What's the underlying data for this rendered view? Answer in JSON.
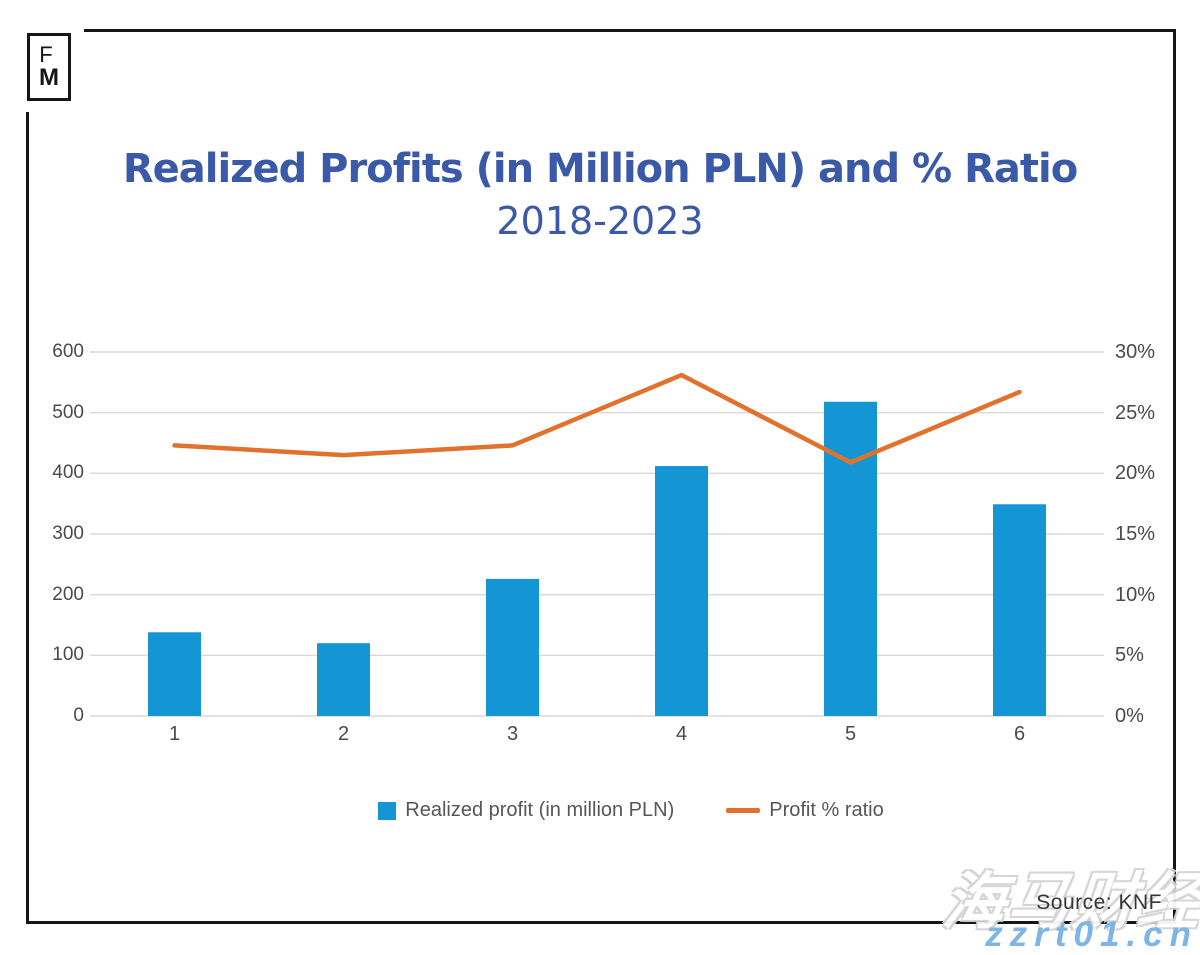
{
  "logo": {
    "line1": "F",
    "line2": "M"
  },
  "header": {
    "title": "Realized Profits (in Million PLN) and % Ratio",
    "subtitle": "2018-2023",
    "title_color": "#3A59A8"
  },
  "chart_data": {
    "type": "bar",
    "subtype": "combo-bar-line",
    "title": "Realized Profits (in Million PLN) and % Ratio",
    "subtitle": "2018-2023",
    "categories": [
      "1",
      "2",
      "3",
      "4",
      "5",
      "6"
    ],
    "series": [
      {
        "name": "Realized profit (in million PLN)",
        "type": "bar",
        "axis": "left",
        "color": "#1596D4",
        "values": [
          138,
          120,
          226,
          412,
          518,
          349
        ]
      },
      {
        "name": "Profit % ratio",
        "type": "line",
        "axis": "right",
        "color": "#E0722D",
        "unit": "%",
        "values": [
          22.3,
          21.5,
          22.3,
          28.1,
          20.9,
          26.7
        ]
      }
    ],
    "left_axis": {
      "min": 0,
      "max": 600,
      "step": 100,
      "ticks": [
        "0",
        "100",
        "200",
        "300",
        "400",
        "500",
        "600"
      ]
    },
    "right_axis": {
      "min": 0,
      "max": 30,
      "step": 5,
      "ticks": [
        "0%",
        "5%",
        "10%",
        "15%",
        "20%",
        "25%",
        "30%"
      ]
    },
    "grid": "horizontal",
    "gridline_color": "#D9D9D9",
    "axis_text_color": "#4a4a4a",
    "legend_position": "bottom"
  },
  "legend": {
    "bar_label": "Realized profit (in million PLN)",
    "line_label": "Profit % ratio"
  },
  "footer": {
    "source": "Source: KNF"
  },
  "watermark": {
    "text_cn": "海马财经",
    "url": "zzrt01.cn",
    "url_color": "#7DB5E6"
  }
}
